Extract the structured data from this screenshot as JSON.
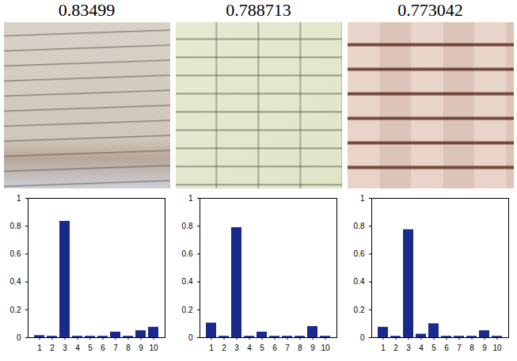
{
  "chart_data": [
    {
      "type": "bar",
      "title": "0.83499",
      "categories": [
        1,
        2,
        3,
        4,
        5,
        6,
        7,
        8,
        9,
        10
      ],
      "values": [
        0.015,
        0.01,
        0.835,
        0.01,
        0.01,
        0.01,
        0.04,
        0.01,
        0.05,
        0.075
      ],
      "color": "#1a2a8c",
      "ylim": [
        0,
        1
      ],
      "yticks": [
        0,
        0.2,
        0.4,
        0.6,
        0.8,
        1
      ]
    },
    {
      "type": "bar",
      "title": "0.788713",
      "categories": [
        1,
        2,
        3,
        4,
        5,
        6,
        7,
        8,
        9,
        10
      ],
      "values": [
        0.105,
        0.01,
        0.79,
        0.01,
        0.04,
        0.01,
        0.01,
        0.01,
        0.08,
        0.01
      ],
      "color": "#1a2a8c",
      "ylim": [
        0,
        1
      ],
      "yticks": [
        0,
        0.2,
        0.4,
        0.6,
        0.8,
        1
      ]
    },
    {
      "type": "bar",
      "title": "0.773042",
      "categories": [
        1,
        2,
        3,
        4,
        5,
        6,
        7,
        8,
        9,
        10
      ],
      "values": [
        0.075,
        0.01,
        0.775,
        0.025,
        0.1,
        0.01,
        0.01,
        0.01,
        0.05,
        0.01
      ],
      "color": "#1a2a8c",
      "ylim": [
        0,
        1
      ],
      "yticks": [
        0,
        0.2,
        0.4,
        0.6,
        0.8,
        1
      ]
    }
  ]
}
